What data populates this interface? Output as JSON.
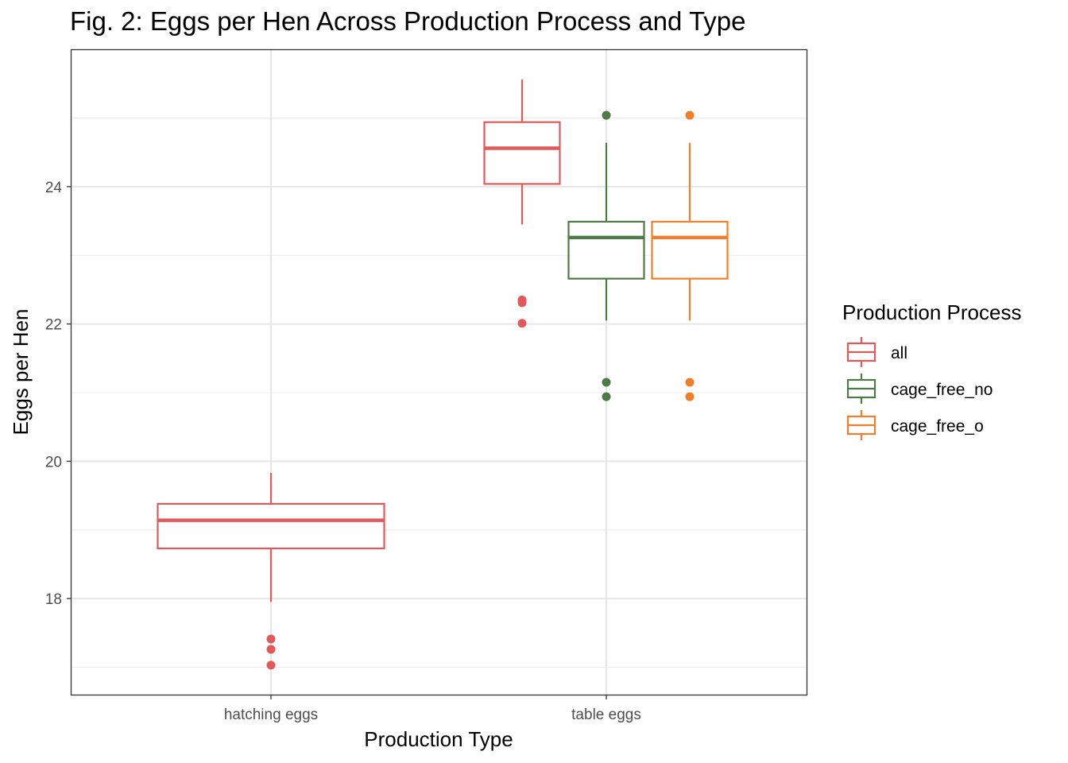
{
  "chart_data": {
    "type": "box",
    "title": "Fig. 2: Eggs per Hen Across Production Process and Type",
    "xlabel": "Production Type",
    "ylabel": "Eggs per Hen",
    "categories": [
      "hatching eggs",
      "table eggs"
    ],
    "ylim": [
      16.6,
      25.99
    ],
    "yticks": [
      18,
      20,
      22,
      24
    ],
    "grid": true,
    "legend": {
      "title": "Production Process",
      "position": "right"
    },
    "series": [
      {
        "name": "all",
        "color": "#E05A5A",
        "boxes": [
          {
            "category": "hatching eggs",
            "whisker_low": 17.95,
            "q1": 18.73,
            "median": 19.14,
            "q3": 19.38,
            "whisker_high": 19.83,
            "outliers": [
              17.41,
              17.26,
              17.03
            ]
          },
          {
            "category": "table eggs",
            "whisker_low": 23.45,
            "q1": 24.04,
            "median": 24.56,
            "q3": 24.94,
            "whisker_high": 25.56,
            "outliers": [
              22.35,
              22.31,
              22.01
            ]
          }
        ]
      },
      {
        "name": "cage_free_no",
        "color": "#4E7A45",
        "boxes": [
          {
            "category": "table eggs",
            "whisker_low": 22.05,
            "q1": 22.66,
            "median": 23.26,
            "q3": 23.49,
            "whisker_high": 24.64,
            "outliers": [
              25.04,
              21.15,
              20.94
            ]
          }
        ]
      },
      {
        "name": "cage_free_o",
        "color": "#F07E2A",
        "boxes": [
          {
            "category": "table eggs",
            "whisker_low": 22.05,
            "q1": 22.66,
            "median": 23.26,
            "q3": 23.49,
            "whisker_high": 24.64,
            "outliers": [
              25.04,
              21.15,
              20.94
            ]
          }
        ]
      }
    ]
  }
}
